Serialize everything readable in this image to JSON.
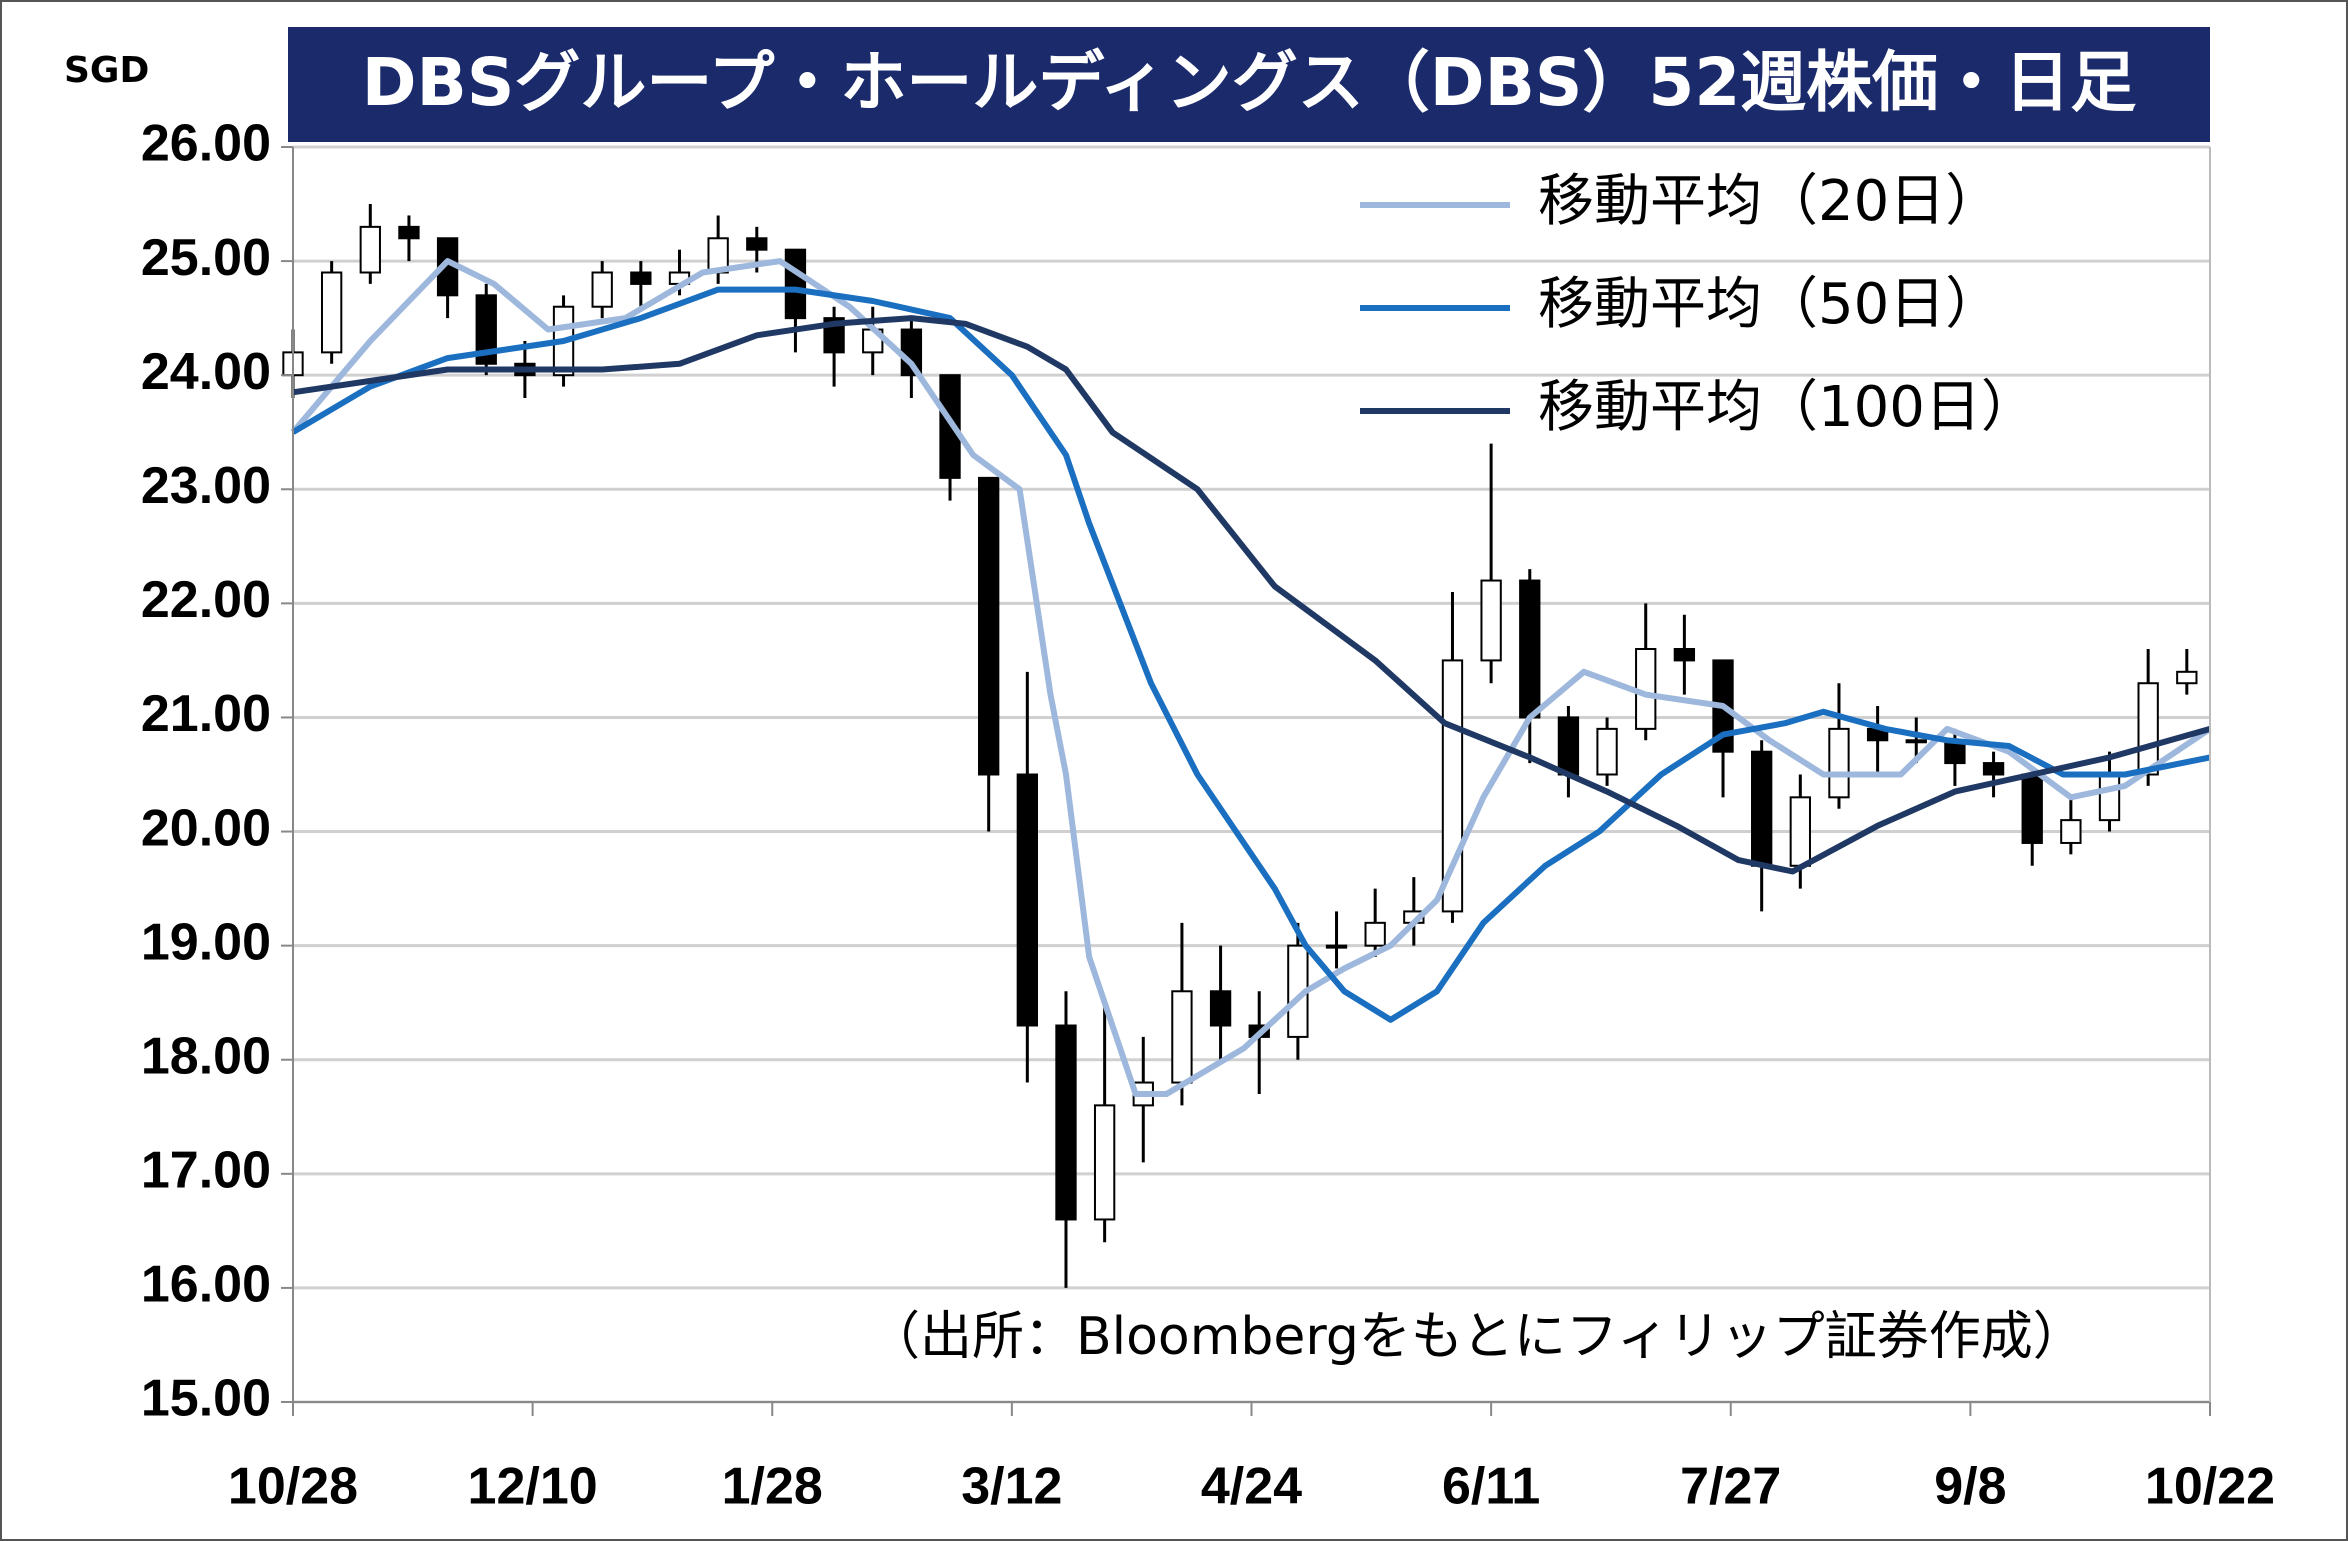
{
  "chart_data": {
    "type": "candlestick",
    "title": "DBSグループ・ホールディングス（DBS）52週株価・日足",
    "y_unit": "SGD",
    "note": "（出所：Bloombergをもとにフィリップ証券作成）",
    "xlim": [
      0,
      248
    ],
    "xticks": [
      {
        "value": 0,
        "label": "10/28"
      },
      {
        "value": 31,
        "label": "12/10"
      },
      {
        "value": 62,
        "label": "1/28"
      },
      {
        "value": 93,
        "label": "3/12"
      },
      {
        "value": 124,
        "label": "4/24"
      },
      {
        "value": 155,
        "label": "6/11"
      },
      {
        "value": 186,
        "label": "7/27"
      },
      {
        "value": 217,
        "label": "9/8"
      },
      {
        "value": 248,
        "label": "10/22"
      }
    ],
    "ylim": [
      15,
      26
    ],
    "yticks": [
      {
        "value": 15,
        "label": "15.00"
      },
      {
        "value": 16,
        "label": "16.00"
      },
      {
        "value": 17,
        "label": "17.00"
      },
      {
        "value": 18,
        "label": "18.00"
      },
      {
        "value": 19,
        "label": "19.00"
      },
      {
        "value": 20,
        "label": "20.00"
      },
      {
        "value": 21,
        "label": "21.00"
      },
      {
        "value": 22,
        "label": "22.00"
      },
      {
        "value": 23,
        "label": "23.00"
      },
      {
        "value": 24,
        "label": "24.00"
      },
      {
        "value": 25,
        "label": "25.00"
      },
      {
        "value": 26,
        "label": "26.00"
      }
    ],
    "grid": true,
    "legend": "top-right",
    "candles": {
      "up_color": "#ffffff",
      "down_color": "#000000",
      "x": [
        0,
        5,
        10,
        15,
        20,
        25,
        30,
        35,
        40,
        45,
        50,
        55,
        60,
        65,
        70,
        75,
        80,
        85,
        90,
        95,
        100,
        105,
        110,
        115,
        120,
        125,
        130,
        135,
        140,
        145,
        150,
        155,
        160,
        165,
        170,
        175,
        180,
        185,
        190,
        195,
        200,
        205,
        210,
        215,
        220,
        225,
        230,
        235,
        240,
        245
      ],
      "open": [
        24.0,
        24.2,
        24.9,
        25.3,
        25.2,
        24.7,
        24.1,
        24.0,
        24.6,
        24.9,
        24.8,
        24.9,
        25.2,
        25.1,
        24.5,
        24.2,
        24.4,
        24.0,
        23.1,
        20.5,
        18.3,
        16.6,
        17.6,
        17.8,
        18.6,
        18.3,
        18.2,
        19.0,
        19.0,
        19.2,
        19.3,
        21.5,
        22.2,
        21.0,
        20.5,
        20.9,
        21.6,
        21.5,
        20.7,
        19.7,
        20.3,
        20.9,
        20.8,
        20.8,
        20.6,
        20.5,
        19.9,
        20.1,
        20.5,
        21.3
      ],
      "high": [
        24.4,
        25.0,
        25.5,
        25.4,
        25.2,
        24.8,
        24.3,
        24.7,
        25.0,
        25.0,
        25.1,
        25.4,
        25.3,
        25.1,
        24.6,
        24.6,
        24.5,
        24.0,
        23.1,
        21.4,
        18.6,
        18.5,
        18.2,
        19.2,
        19.0,
        18.6,
        19.2,
        19.3,
        19.5,
        19.6,
        22.1,
        23.4,
        22.3,
        21.1,
        21.0,
        22.0,
        21.9,
        21.5,
        20.8,
        20.5,
        21.3,
        21.1,
        21.0,
        20.9,
        20.7,
        20.5,
        20.3,
        20.7,
        21.6,
        21.6
      ],
      "low": [
        23.8,
        24.1,
        24.8,
        25.0,
        24.5,
        24.0,
        23.8,
        23.9,
        24.5,
        24.6,
        24.7,
        24.8,
        24.9,
        24.2,
        23.9,
        24.0,
        23.8,
        22.9,
        20.0,
        17.8,
        16.0,
        16.4,
        17.1,
        17.6,
        18.0,
        17.7,
        18.0,
        18.8,
        18.9,
        19.0,
        19.2,
        21.3,
        20.6,
        20.3,
        20.4,
        20.8,
        21.2,
        20.3,
        19.3,
        19.5,
        20.2,
        20.5,
        20.6,
        20.4,
        20.3,
        19.7,
        19.8,
        20.0,
        20.4,
        21.2
      ],
      "close": [
        24.2,
        24.9,
        25.3,
        25.2,
        24.7,
        24.1,
        24.0,
        24.6,
        24.9,
        24.8,
        24.9,
        25.2,
        25.1,
        24.5,
        24.2,
        24.4,
        24.0,
        23.1,
        20.5,
        18.3,
        16.6,
        17.6,
        17.8,
        18.6,
        18.3,
        18.2,
        19.0,
        19.0,
        19.2,
        19.3,
        21.5,
        22.2,
        21.0,
        20.5,
        20.9,
        21.6,
        21.5,
        20.7,
        19.7,
        20.3,
        20.9,
        20.8,
        20.8,
        20.6,
        20.5,
        19.9,
        20.1,
        20.5,
        21.3,
        21.4
      ]
    },
    "series": [
      {
        "name": "移動平均（20日）",
        "color": "#9db8dc",
        "x": [
          0,
          10,
          20,
          26,
          33,
          43,
          53,
          63,
          72,
          80,
          88,
          94,
          98,
          100,
          103,
          109,
          113,
          123,
          131,
          136,
          142,
          148,
          154,
          160,
          167,
          175,
          185,
          191,
          198,
          208,
          214,
          222,
          230,
          237,
          248
        ],
        "values": [
          23.5,
          24.3,
          25.0,
          24.8,
          24.4,
          24.5,
          24.9,
          25.0,
          24.6,
          24.1,
          23.3,
          23.0,
          21.2,
          20.5,
          18.9,
          17.7,
          17.7,
          18.1,
          18.6,
          18.8,
          19.0,
          19.4,
          20.3,
          21.0,
          21.4,
          21.2,
          21.1,
          20.8,
          20.5,
          20.5,
          20.9,
          20.7,
          20.3,
          20.4,
          20.9
        ]
      },
      {
        "name": "移動平均（50日）",
        "color": "#1a6fc0",
        "x": [
          0,
          10,
          20,
          35,
          45,
          55,
          65,
          75,
          85,
          93,
          100,
          103,
          111,
          117,
          123,
          127,
          131,
          136,
          142,
          148,
          154,
          162,
          169,
          177,
          185,
          193,
          198,
          206,
          214,
          222,
          229,
          237,
          248
        ],
        "values": [
          23.5,
          23.9,
          24.15,
          24.3,
          24.5,
          24.75,
          24.75,
          24.65,
          24.5,
          24.0,
          23.3,
          22.7,
          21.3,
          20.5,
          19.9,
          19.5,
          19.0,
          18.6,
          18.35,
          18.6,
          19.2,
          19.7,
          20.0,
          20.5,
          20.85,
          20.95,
          21.05,
          20.9,
          20.8,
          20.75,
          20.5,
          20.5,
          20.65
        ]
      },
      {
        "name": "移動平均（100日）",
        "color": "#1f3864",
        "x": [
          0,
          20,
          40,
          50,
          60,
          70,
          80,
          87,
          95,
          100,
          106,
          117,
          127,
          140,
          149,
          160,
          170,
          179,
          187,
          194,
          205,
          215,
          225,
          235,
          248
        ],
        "values": [
          23.85,
          24.05,
          24.05,
          24.1,
          24.35,
          24.45,
          24.5,
          24.45,
          24.25,
          24.05,
          23.5,
          23.0,
          22.15,
          21.5,
          20.95,
          20.65,
          20.35,
          20.05,
          19.75,
          19.65,
          20.05,
          20.35,
          20.5,
          20.65,
          20.9
        ]
      }
    ]
  }
}
